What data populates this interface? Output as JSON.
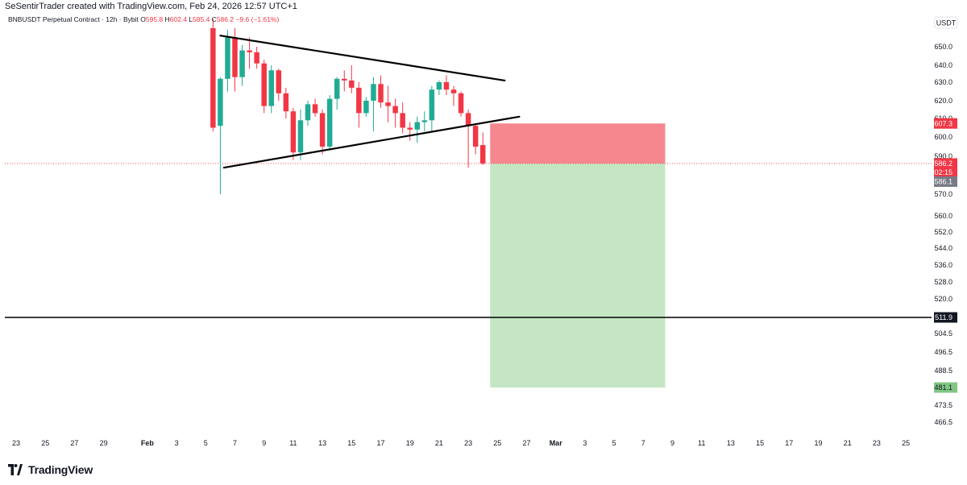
{
  "caption": "SeSentirTrader created with TradingView.com, Feb 24, 2026 12:57 UTC+1",
  "brand": {
    "name": "TradingView",
    "logo_icon": "tradingview-logo-icon"
  },
  "legend": {
    "symbol": "BNBUSDT Perpetual Contract · 12h · Bybit",
    "open_label": "O",
    "open": "595.8",
    "high_label": "H",
    "high": "602.4",
    "low_label": "L",
    "low": "585.4",
    "close_label": "C",
    "close": "586.2",
    "change": "−9.6 (−1.61%)"
  },
  "colors": {
    "up": "#22ab94",
    "down": "#f23645",
    "text": "#131722",
    "stop_zone": "#f7878f",
    "target_zone": "#c4e6c4",
    "stop_label": "#f23645",
    "current_label": "#f23645",
    "last_label": "#787b86",
    "target_label": "#81c784",
    "support_label": "#131722"
  },
  "chart_data": {
    "type": "candlestick",
    "title": "BNBUSDT Perpetual Contract · 12h · Bybit",
    "currency": "USDT",
    "y_tick_labels": [
      "650.0",
      "640.0",
      "630.0",
      "620.0",
      "610.0",
      "600.0",
      "590.0",
      "570.0",
      "560.0",
      "552.0",
      "544.0",
      "536.0",
      "528.0",
      "520.0",
      "504.5",
      "496.5",
      "488.5",
      "473.5",
      "466.5"
    ],
    "x_tick_labels": [
      "23",
      "25",
      "27",
      "29",
      "Feb",
      "3",
      "5",
      "7",
      "9",
      "11",
      "13",
      "15",
      "17",
      "19",
      "21",
      "23",
      "25",
      "27",
      "Mar",
      "3",
      "5",
      "7",
      "9",
      "11",
      "13",
      "15",
      "17",
      "19",
      "21",
      "23",
      "25"
    ],
    "candles": [
      {
        "date": "2026-02-05 12:00",
        "o": 660,
        "h": 665,
        "l": 603,
        "c": 605
      },
      {
        "date": "2026-02-06 00:00",
        "o": 606,
        "h": 633,
        "l": 570,
        "c": 632
      },
      {
        "date": "2026-02-06 12:00",
        "o": 632,
        "h": 659,
        "l": 625,
        "c": 655
      },
      {
        "date": "2026-02-07 00:00",
        "o": 655,
        "h": 660,
        "l": 625,
        "c": 633
      },
      {
        "date": "2026-02-07 12:00",
        "o": 633,
        "h": 651,
        "l": 628,
        "c": 648
      },
      {
        "date": "2026-02-08 00:00",
        "o": 648,
        "h": 655,
        "l": 638,
        "c": 647
      },
      {
        "date": "2026-02-08 12:00",
        "o": 647,
        "h": 650,
        "l": 638,
        "c": 641
      },
      {
        "date": "2026-02-09 00:00",
        "o": 641,
        "h": 643,
        "l": 613,
        "c": 617
      },
      {
        "date": "2026-02-09 12:00",
        "o": 617,
        "h": 640,
        "l": 613,
        "c": 637
      },
      {
        "date": "2026-02-10 00:00",
        "o": 637,
        "h": 638,
        "l": 620,
        "c": 624
      },
      {
        "date": "2026-02-10 12:00",
        "o": 624,
        "h": 627,
        "l": 610,
        "c": 614
      },
      {
        "date": "2026-02-11 00:00",
        "o": 614,
        "h": 616,
        "l": 588,
        "c": 592
      },
      {
        "date": "2026-02-11 12:00",
        "o": 592,
        "h": 615,
        "l": 588,
        "c": 609
      },
      {
        "date": "2026-02-12 00:00",
        "o": 609,
        "h": 620,
        "l": 606,
        "c": 618
      },
      {
        "date": "2026-02-12 12:00",
        "o": 618,
        "h": 621,
        "l": 611,
        "c": 613
      },
      {
        "date": "2026-02-13 00:00",
        "o": 613,
        "h": 615,
        "l": 591,
        "c": 595
      },
      {
        "date": "2026-02-13 12:00",
        "o": 595,
        "h": 623,
        "l": 593,
        "c": 621
      },
      {
        "date": "2026-02-14 00:00",
        "o": 621,
        "h": 633,
        "l": 615,
        "c": 632
      },
      {
        "date": "2026-02-14 12:00",
        "o": 632,
        "h": 637,
        "l": 625,
        "c": 631
      },
      {
        "date": "2026-02-15 00:00",
        "o": 631,
        "h": 640,
        "l": 624,
        "c": 627
      },
      {
        "date": "2026-02-15 12:00",
        "o": 627,
        "h": 630,
        "l": 605,
        "c": 613
      },
      {
        "date": "2026-02-16 00:00",
        "o": 613,
        "h": 622,
        "l": 611,
        "c": 620
      },
      {
        "date": "2026-02-16 12:00",
        "o": 620,
        "h": 633,
        "l": 603,
        "c": 629
      },
      {
        "date": "2026-02-17 00:00",
        "o": 629,
        "h": 634,
        "l": 616,
        "c": 619
      },
      {
        "date": "2026-02-17 12:00",
        "o": 619,
        "h": 628,
        "l": 608,
        "c": 617
      },
      {
        "date": "2026-02-18 00:00",
        "o": 617,
        "h": 621,
        "l": 605,
        "c": 613
      },
      {
        "date": "2026-02-18 12:00",
        "o": 613,
        "h": 619,
        "l": 602,
        "c": 605
      },
      {
        "date": "2026-02-19 00:00",
        "o": 605,
        "h": 608,
        "l": 598,
        "c": 604
      },
      {
        "date": "2026-02-19 12:00",
        "o": 604,
        "h": 611,
        "l": 597,
        "c": 608
      },
      {
        "date": "2026-02-20 00:00",
        "o": 608,
        "h": 614,
        "l": 603,
        "c": 609
      },
      {
        "date": "2026-02-20 12:00",
        "o": 609,
        "h": 628,
        "l": 603,
        "c": 626
      },
      {
        "date": "2026-02-21 00:00",
        "o": 626,
        "h": 631,
        "l": 623,
        "c": 630
      },
      {
        "date": "2026-02-21 12:00",
        "o": 630,
        "h": 634,
        "l": 623,
        "c": 626
      },
      {
        "date": "2026-02-22 00:00",
        "o": 626,
        "h": 628,
        "l": 617,
        "c": 624
      },
      {
        "date": "2026-02-22 12:00",
        "o": 624,
        "h": 625,
        "l": 611,
        "c": 613
      },
      {
        "date": "2026-02-23 00:00",
        "o": 613,
        "h": 615,
        "l": 584,
        "c": 606
      },
      {
        "date": "2026-02-23 12:00",
        "o": 606,
        "h": 607,
        "l": 591,
        "c": 595
      },
      {
        "date": "2026-02-24 00:00",
        "o": 595.8,
        "h": 602.4,
        "l": 585.4,
        "c": 586.2
      }
    ],
    "trendlines": [
      {
        "name": "upper",
        "from": {
          "date": "2026-02-06 00:00",
          "price": 656
        },
        "to": {
          "date": "2026-02-25 12:00",
          "price": 631
        }
      },
      {
        "name": "lower",
        "from": {
          "date": "2026-02-06 06:00",
          "price": 584
        },
        "to": {
          "date": "2026-02-26 12:00",
          "price": 611
        }
      }
    ],
    "horizontal_line": {
      "price": 511.9,
      "label": "511.9"
    },
    "short_position": {
      "entry": 586.2,
      "stop": 607.3,
      "target": 481.1,
      "from_date": "2026-02-24 12:00",
      "to_date": "2026-03-08 12:00"
    },
    "price_labels": {
      "stop": "607.3",
      "current": "586.2",
      "countdown": "02:15",
      "last": "586.1",
      "support": "511.9",
      "target": "481.1"
    },
    "grid": false,
    "x_range": [
      "2026-01-22",
      "2026-03-26"
    ]
  }
}
